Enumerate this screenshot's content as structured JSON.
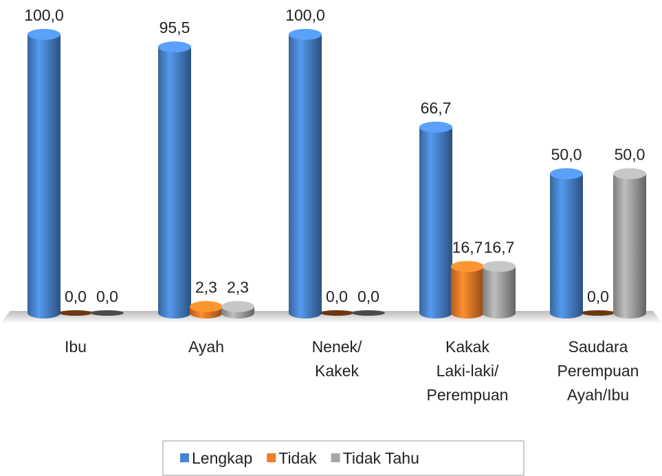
{
  "chart_data": {
    "type": "bar",
    "categories": [
      "Ibu",
      "Ayah",
      "Nenek/\nKakek",
      "Kakak\nLaki-laki/\nPerempuan",
      "Saudara\nPerempuan\nAyah/Ibu"
    ],
    "series": [
      {
        "name": "Lengkap",
        "color": "#4a86d0",
        "values": [
          100.0,
          95.5,
          100.0,
          66.7,
          50.0
        ],
        "value_labels": [
          "100,0",
          "95,5",
          "100,0",
          "66,7",
          "50,0"
        ]
      },
      {
        "name": "Tidak",
        "color": "#f07c28",
        "values": [
          0.0,
          2.3,
          0.0,
          16.7,
          0.0
        ],
        "value_labels": [
          "0,0",
          "2,3",
          "0,0",
          "16,7",
          "0,0"
        ]
      },
      {
        "name": "Tidak Tahu",
        "color": "#a6a6a6",
        "values": [
          0.0,
          2.3,
          0.0,
          16.7,
          50.0
        ],
        "value_labels": [
          "0,0",
          "2,3",
          "0,0",
          "16,7",
          "50,0"
        ]
      }
    ],
    "legend": "bottom"
  }
}
